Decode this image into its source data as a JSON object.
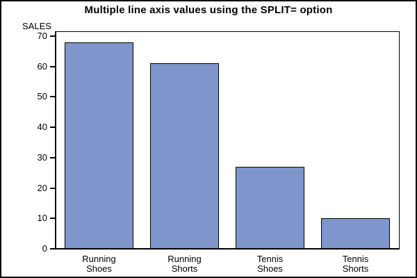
{
  "window": {
    "background_color": "#FFFFFF",
    "border_color": "#000000"
  },
  "chart_data": {
    "type": "bar",
    "title": "Multiple line axis values using the SPLIT= option",
    "ylabel": "SALES",
    "xlabel": "",
    "categories": [
      "Running Shoes",
      "Running Shorts",
      "Tennis Shoes",
      "Tennis Shorts"
    ],
    "category_label_lines": [
      [
        "Running",
        "Shoes"
      ],
      [
        "Running",
        "Shorts"
      ],
      [
        "Tennis",
        "Shoes"
      ],
      [
        "Tennis",
        "Shorts"
      ]
    ],
    "values": [
      68,
      61,
      27,
      10
    ],
    "ylim": [
      0,
      70
    ],
    "yticks": [
      0,
      10,
      20,
      30,
      40,
      50,
      60,
      70
    ],
    "grid": false,
    "legend": false,
    "bar_color": "#7E96CB",
    "bar_border_color": "#000000",
    "axis_color": "#000000",
    "text_color": "#000000"
  }
}
